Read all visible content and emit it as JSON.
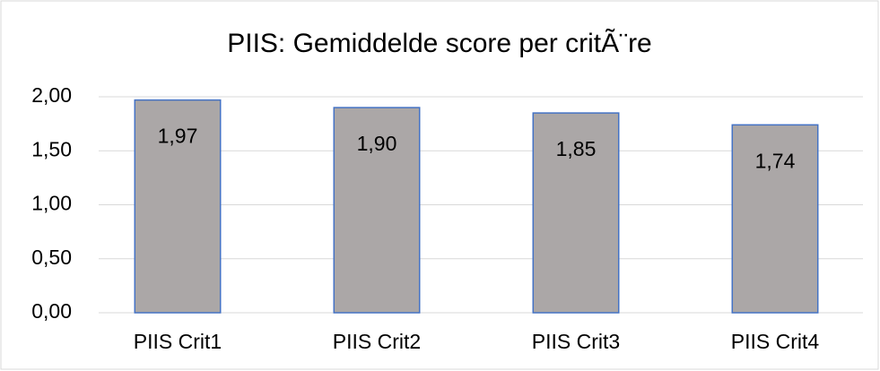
{
  "chart_data": {
    "type": "bar",
    "title": "PIIS: Gemiddelde score per critÃ¨re",
    "categories": [
      "PIIS Crit1",
      "PIIS Crit2",
      "PIIS Crit3",
      "PIIS Crit4"
    ],
    "values": [
      1.97,
      1.9,
      1.85,
      1.74
    ],
    "value_labels": [
      "1,97",
      "1,90",
      "1,85",
      "1,74"
    ],
    "color": "#aba7a7",
    "edgecolor": "#4472c4",
    "ylim": [
      0,
      2
    ],
    "yticks": [
      {
        "value": 0,
        "label": "0,00"
      },
      {
        "value": 0.5,
        "label": "0,50"
      },
      {
        "value": 1,
        "label": "1,00"
      },
      {
        "value": 1.5,
        "label": "1,50"
      },
      {
        "value": 2,
        "label": "2,00"
      }
    ],
    "grid": true
  }
}
